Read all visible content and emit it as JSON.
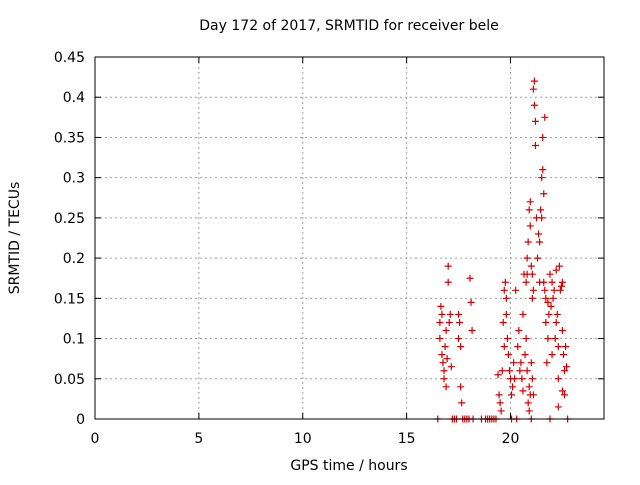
{
  "chart_data": {
    "type": "scatter",
    "title": "Day 172 of 2017, SRMTID for receiver bele",
    "xlabel": "GPS time / hours",
    "ylabel": "SRMTID / TECUs",
    "xlim": [
      0,
      24.5
    ],
    "ylim": [
      0,
      0.45
    ],
    "xticks": [
      "0",
      "5",
      "10",
      "15",
      "20"
    ],
    "xtick_values": [
      0,
      5,
      10,
      15,
      20
    ],
    "yticks": [
      "0",
      "0.05",
      "0.1",
      "0.15",
      "0.2",
      "0.25",
      "0.3",
      "0.35",
      "0.4",
      "0.45"
    ],
    "ytick_values": [
      0,
      0.05,
      0.1,
      0.15,
      0.2,
      0.25,
      0.3,
      0.35,
      0.4,
      0.45
    ],
    "grid": true,
    "series_color": "#d40000",
    "points": [
      [
        16.5,
        0.0
      ],
      [
        16.6,
        0.12
      ],
      [
        16.6,
        0.1
      ],
      [
        16.65,
        0.14
      ],
      [
        16.7,
        0.13
      ],
      [
        16.7,
        0.08
      ],
      [
        16.75,
        0.07
      ],
      [
        16.8,
        0.06
      ],
      [
        16.8,
        0.05
      ],
      [
        16.85,
        0.09
      ],
      [
        16.9,
        0.04
      ],
      [
        16.9,
        0.11
      ],
      [
        16.95,
        0.075
      ],
      [
        17.0,
        0.19
      ],
      [
        17.0,
        0.17
      ],
      [
        17.05,
        0.12
      ],
      [
        17.1,
        0.13
      ],
      [
        17.15,
        0.065
      ],
      [
        17.2,
        0.0
      ],
      [
        17.3,
        0.0
      ],
      [
        17.4,
        0.0
      ],
      [
        17.5,
        0.1
      ],
      [
        17.5,
        0.13
      ],
      [
        17.55,
        0.12
      ],
      [
        17.6,
        0.09
      ],
      [
        17.6,
        0.04
      ],
      [
        17.65,
        0.02
      ],
      [
        17.7,
        0.0
      ],
      [
        17.8,
        0.0
      ],
      [
        17.9,
        0.0
      ],
      [
        18.0,
        0.0
      ],
      [
        18.05,
        0.175
      ],
      [
        18.1,
        0.145
      ],
      [
        18.15,
        0.11
      ],
      [
        18.2,
        0.0
      ],
      [
        18.6,
        0.0
      ],
      [
        18.8,
        0.0
      ],
      [
        18.9,
        0.0
      ],
      [
        19.0,
        0.0
      ],
      [
        19.1,
        0.0
      ],
      [
        19.2,
        0.0
      ],
      [
        19.3,
        0.0
      ],
      [
        19.4,
        0.055
      ],
      [
        19.45,
        0.03
      ],
      [
        19.5,
        0.02
      ],
      [
        19.55,
        0.01
      ],
      [
        19.6,
        0.06
      ],
      [
        19.65,
        0.12
      ],
      [
        19.7,
        0.09
      ],
      [
        19.7,
        0.16
      ],
      [
        19.75,
        0.17
      ],
      [
        19.8,
        0.15
      ],
      [
        19.8,
        0.13
      ],
      [
        19.85,
        0.1
      ],
      [
        19.9,
        0.08
      ],
      [
        19.95,
        0.06
      ],
      [
        20.0,
        0.05
      ],
      [
        20.05,
        0.03
      ],
      [
        20.05,
        0.0
      ],
      [
        20.1,
        0.04
      ],
      [
        20.15,
        0.07
      ],
      [
        20.2,
        0.05
      ],
      [
        20.25,
        0.16
      ],
      [
        20.3,
        0.0
      ],
      [
        20.35,
        0.09
      ],
      [
        20.4,
        0.11
      ],
      [
        20.45,
        0.06
      ],
      [
        20.5,
        0.07
      ],
      [
        20.55,
        0.05
      ],
      [
        20.6,
        0.13
      ],
      [
        20.6,
        0.035
      ],
      [
        20.65,
        0.18
      ],
      [
        20.7,
        0.08
      ],
      [
        20.75,
        0.1
      ],
      [
        20.8,
        0.06
      ],
      [
        20.85,
        0.02
      ],
      [
        20.9,
        0.01
      ],
      [
        20.9,
        0.04
      ],
      [
        20.95,
        0.03
      ],
      [
        21.0,
        0.0
      ],
      [
        21.0,
        0.07
      ],
      [
        21.05,
        0.05
      ],
      [
        21.1,
        0.03
      ],
      [
        20.75,
        0.17
      ],
      [
        20.8,
        0.18
      ],
      [
        20.8,
        0.2
      ],
      [
        20.85,
        0.22
      ],
      [
        20.9,
        0.26
      ],
      [
        20.95,
        0.27
      ],
      [
        20.95,
        0.24
      ],
      [
        21.0,
        0.19
      ],
      [
        21.05,
        0.18
      ],
      [
        21.05,
        0.15
      ],
      [
        21.1,
        0.16
      ],
      [
        21.1,
        0.41
      ],
      [
        21.15,
        0.42
      ],
      [
        21.15,
        0.39
      ],
      [
        21.2,
        0.37
      ],
      [
        21.2,
        0.34
      ],
      [
        21.25,
        0.25
      ],
      [
        21.3,
        0.2
      ],
      [
        21.35,
        0.23
      ],
      [
        21.4,
        0.22
      ],
      [
        21.45,
        0.26
      ],
      [
        21.5,
        0.25
      ],
      [
        21.5,
        0.3
      ],
      [
        21.55,
        0.31
      ],
      [
        21.55,
        0.35
      ],
      [
        21.6,
        0.28
      ],
      [
        21.65,
        0.375
      ],
      [
        21.6,
        0.17
      ],
      [
        21.65,
        0.16
      ],
      [
        21.7,
        0.15
      ],
      [
        21.7,
        0.12
      ],
      [
        21.75,
        0.07
      ],
      [
        21.8,
        0.1
      ],
      [
        21.85,
        0.13
      ],
      [
        21.9,
        0.18
      ],
      [
        21.95,
        0.14
      ],
      [
        22.0,
        0.17
      ],
      [
        22.0,
        0.08
      ],
      [
        22.05,
        0.15
      ],
      [
        22.1,
        0.16
      ],
      [
        22.15,
        0.1
      ],
      [
        22.2,
        0.12
      ],
      [
        22.25,
        0.13
      ],
      [
        22.3,
        0.09
      ],
      [
        22.3,
        0.05
      ],
      [
        22.35,
        0.19
      ],
      [
        22.4,
        0.16
      ],
      [
        22.45,
        0.165
      ],
      [
        22.5,
        0.17
      ],
      [
        22.5,
        0.11
      ],
      [
        22.55,
        0.08
      ],
      [
        22.6,
        0.06
      ],
      [
        22.6,
        0.03
      ],
      [
        22.65,
        0.09
      ],
      [
        22.7,
        0.065
      ],
      [
        22.75,
        0.0
      ],
      [
        21.9,
        0.0
      ],
      [
        22.3,
        0.015
      ],
      [
        22.5,
        0.035
      ],
      [
        21.4,
        0.17
      ],
      [
        21.8,
        0.145
      ],
      [
        22.2,
        0.185
      ]
    ]
  }
}
